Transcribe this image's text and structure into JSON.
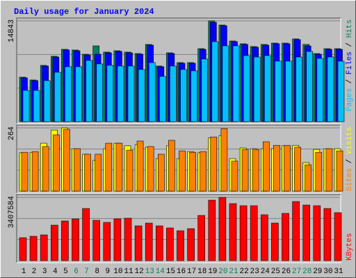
{
  "chart_data": [
    {
      "type": "bar",
      "title": "Daily usage for January 2024",
      "legend_separator": " / ",
      "ylim": [
        0,
        14843
      ],
      "yticks": [
        14843
      ],
      "series": [
        {
          "name": "Hits",
          "color": "#00805C",
          "values": [
            6550,
            6140,
            8290,
            9630,
            10650,
            10550,
            9930,
            11160,
            10240,
            10440,
            10240,
            10030,
            11370,
            8190,
            10140,
            8700,
            8700,
            10750,
            14843,
            14230,
            11880,
            11470,
            11060,
            11370,
            11570,
            11570,
            12190,
            11370,
            10030,
            10750,
            10750
          ]
        },
        {
          "name": "Files",
          "color": "#0000FF",
          "values": [
            6450,
            6040,
            8190,
            9520,
            10550,
            10440,
            9830,
            9930,
            10140,
            10340,
            10140,
            9930,
            11260,
            8090,
            10040,
            8600,
            8600,
            10650,
            14640,
            14130,
            11780,
            11370,
            10960,
            11260,
            11470,
            11470,
            12080,
            11160,
            9930,
            10650,
            10650
          ]
        },
        {
          "name": "Pages",
          "color": "#00C0FF",
          "values": [
            4610,
            4610,
            6040,
            7270,
            8090,
            8090,
            9010,
            8500,
            8290,
            8190,
            8190,
            7680,
            8700,
            6660,
            8190,
            7680,
            7480,
            9220,
            11780,
            11160,
            11160,
            9730,
            9520,
            9730,
            8910,
            8910,
            9520,
            10340,
            9320,
            9520,
            8910
          ]
        }
      ]
    },
    {
      "type": "bar",
      "legend_separator": " / ",
      "ylim": [
        0,
        264
      ],
      "yticks": [
        264
      ],
      "series": [
        {
          "name": "Visits",
          "color": "#FFFF00",
          "values": [
            160,
            162,
            200,
            255,
            264,
            177,
            154,
            128,
            177,
            200,
            189,
            194,
            183,
            136,
            189,
            136,
            165,
            160,
            223,
            232,
            136,
            180,
            177,
            177,
            177,
            189,
            191,
            119,
            174,
            177,
            177
          ]
        },
        {
          "name": "Sites",
          "color": "#FF8000",
          "values": [
            162,
            165,
            186,
            235,
            258,
            177,
            154,
            154,
            200,
            200,
            171,
            209,
            186,
            154,
            212,
            168,
            162,
            165,
            226,
            261,
            125,
            174,
            174,
            206,
            191,
            191,
            183,
            110,
            162,
            177,
            168
          ]
        }
      ]
    },
    {
      "type": "bar",
      "ylim": [
        0,
        3407584
      ],
      "yticks": [
        3407584
      ],
      "categories": [
        "1",
        "2",
        "3",
        "4",
        "5",
        "6",
        "7",
        "8",
        "9",
        "10",
        "11",
        "12",
        "13",
        "14",
        "15",
        "16",
        "17",
        "18",
        "19",
        "20",
        "21",
        "22",
        "23",
        "24",
        "25",
        "26",
        "27",
        "28",
        "29",
        "30",
        "31"
      ],
      "category_colors": [
        "#000000",
        "#000000",
        "#000000",
        "#000000",
        "#000000",
        "#00805C",
        "#00805C",
        "#000000",
        "#000000",
        "#000000",
        "#000000",
        "#000000",
        "#00805C",
        "#00805C",
        "#000000",
        "#000000",
        "#000000",
        "#000000",
        "#000000",
        "#00805C",
        "#00805C",
        "#000000",
        "#000000",
        "#000000",
        "#000000",
        "#000000",
        "#00805C",
        "#00805C",
        "#000000",
        "#000000",
        "#000000"
      ],
      "series": [
        {
          "name": "KBytes",
          "color": "#FF0000",
          "values": [
            1235700,
            1310600,
            1385500,
            1909700,
            2134400,
            2246800,
            2808500,
            2171900,
            2059500,
            2246800,
            2284200,
            1872300,
            2022100,
            1872300,
            1760000,
            1610200,
            1722500,
            2434000,
            3257800,
            3407584,
            3070600,
            2958200,
            2958200,
            2471400,
            2022100,
            2546300,
            3182900,
            2995700,
            2958200,
            2808500,
            2583800
          ]
        }
      ]
    }
  ]
}
